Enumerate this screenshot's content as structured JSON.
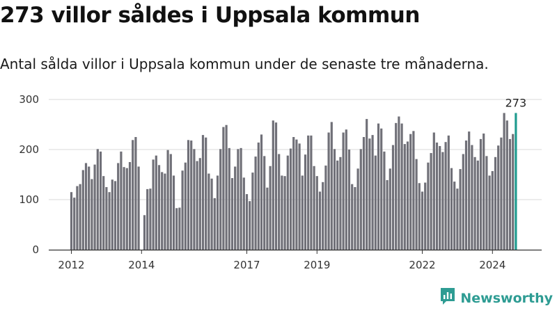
{
  "header": {
    "title": "273 villor såldes i Uppsala kommun",
    "subtitle": "Antal sålda villor i Uppsala kommun under de senaste tre månaderna."
  },
  "brand": {
    "name": "Newsworthy",
    "logo_icon": "bar-chart-logo-icon",
    "color": "#2e9c93"
  },
  "colors": {
    "bar": "#707078",
    "highlight": "#1f9b8f",
    "grid": "#d9d9d9",
    "axis": "#333333"
  },
  "chart_data": {
    "type": "bar",
    "title": "273 villor såldes i Uppsala kommun",
    "subtitle": "Antal sålda villor i Uppsala kommun under de senaste tre månaderna.",
    "xlabel": "",
    "ylabel": "",
    "ylim": [
      0,
      300
    ],
    "yticks": [
      0,
      100,
      200,
      300
    ],
    "grid": true,
    "x_tick_labels": [
      "2012",
      "2014",
      "2017",
      "2019",
      "2022",
      "2024"
    ],
    "x_tick_indices": [
      0,
      24,
      60,
      84,
      120,
      144
    ],
    "highlight_label": "273",
    "series": [
      {
        "values": [
          115,
          104,
          127,
          131,
          159,
          173,
          166,
          141,
          170,
          201,
          196,
          147,
          125,
          115,
          140,
          137,
          173,
          196,
          165,
          163,
          175,
          219,
          225,
          166,
          0,
          69,
          121,
          122,
          180,
          188,
          169,
          155,
          152,
          199,
          191,
          148,
          83,
          84,
          158,
          174,
          219,
          218,
          201,
          177,
          183,
          229,
          224,
          152,
          142,
          103,
          148,
          201,
          245,
          249,
          203,
          143,
          166,
          201,
          203,
          144,
          111,
          97,
          154,
          186,
          214,
          230,
          187,
          124,
          167,
          258,
          254,
          191,
          148,
          147,
          188,
          202,
          225,
          220,
          212,
          148,
          190,
          228,
          228,
          167,
          147,
          116,
          135,
          168,
          234,
          255,
          201,
          178,
          185,
          234,
          240,
          200,
          131,
          125,
          162,
          201,
          225,
          261,
          222,
          229,
          188,
          252,
          242,
          196,
          139,
          162,
          209,
          253,
          266,
          252,
          211,
          216,
          231,
          237,
          181,
          133,
          116,
          134,
          174,
          193,
          234,
          214,
          207,
          195,
          215,
          228,
          163,
          136,
          122,
          161,
          191,
          218,
          236,
          209,
          185,
          178,
          221,
          232,
          187,
          148,
          157,
          185,
          208,
          224,
          273,
          258,
          221,
          231,
          273
        ]
      }
    ]
  }
}
